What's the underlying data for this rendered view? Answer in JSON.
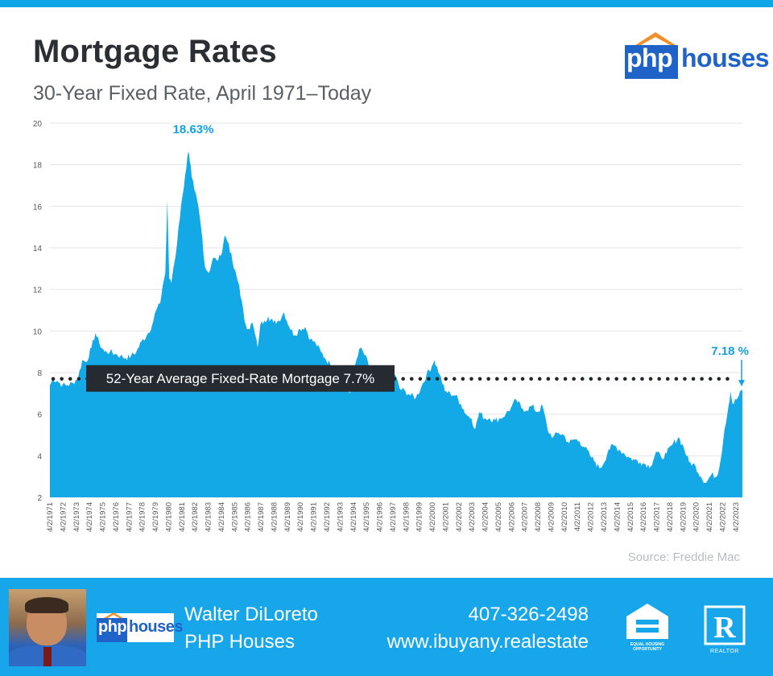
{
  "header": {
    "title": "Mortgage Rates",
    "subtitle": "30-Year Fixed Rate, April 1971–Today",
    "brand": {
      "php": "php",
      "houses": "houses"
    }
  },
  "chart_data": {
    "type": "area",
    "title": "Mortgage Rates",
    "subtitle": "30-Year Fixed Rate, April 1971–Today",
    "xlabel": "",
    "ylabel": "",
    "ylim": [
      2,
      20
    ],
    "y_ticks": [
      2,
      4,
      6,
      8,
      10,
      12,
      14,
      16,
      18,
      20
    ],
    "grid": true,
    "x_tick_labels": [
      "4/2/1971",
      "4/2/1972",
      "4/2/1973",
      "4/2/1974",
      "4/2/1975",
      "4/2/1976",
      "4/2/1977",
      "4/2/1978",
      "4/2/1979",
      "4/2/1980",
      "4/2/1981",
      "4/2/1982",
      "4/2/1983",
      "4/2/1984",
      "4/2/1985",
      "4/2/1986",
      "4/2/1987",
      "4/2/1988",
      "4/2/1989",
      "4/2/1990",
      "4/2/1991",
      "4/2/1992",
      "4/2/1993",
      "4/2/1994",
      "4/2/1995",
      "4/2/1996",
      "4/2/1997",
      "4/2/1998",
      "4/2/1999",
      "4/2/2000",
      "4/2/2001",
      "4/2/2002",
      "4/2/2003",
      "4/2/2004",
      "4/2/2005",
      "4/2/2006",
      "4/2/2007",
      "4/2/2008",
      "4/2/2009",
      "4/2/2010",
      "4/2/2011",
      "4/2/2012",
      "4/2/2013",
      "4/2/2014",
      "4/2/2015",
      "4/2/2016",
      "4/2/2017",
      "4/2/2018",
      "4/2/2019",
      "4/2/2020",
      "4/2/2021",
      "4/2/2022",
      "4/2/2023"
    ],
    "x_range": [
      1971.25,
      2023.75
    ],
    "series": [
      {
        "color": "#13a8e6",
        "x": [
          1971.25,
          1971.5,
          1971.8,
          1972.2,
          1972.6,
          1973.0,
          1973.4,
          1973.7,
          1974.0,
          1974.4,
          1974.7,
          1975.0,
          1975.4,
          1975.8,
          1976.2,
          1976.6,
          1977.0,
          1977.4,
          1977.8,
          1978.2,
          1978.6,
          1979.0,
          1979.3,
          1979.6,
          1979.8,
          1980.0,
          1980.15,
          1980.3,
          1980.45,
          1980.6,
          1980.8,
          1981.0,
          1981.3,
          1981.5,
          1981.75,
          1981.85,
          1982.0,
          1982.2,
          1982.5,
          1982.8,
          1983.0,
          1983.3,
          1983.6,
          1983.9,
          1984.2,
          1984.5,
          1984.8,
          1985.2,
          1985.6,
          1986.0,
          1986.3,
          1986.6,
          1987.0,
          1987.2,
          1987.5,
          1987.8,
          1988.2,
          1988.6,
          1989.0,
          1989.4,
          1989.8,
          1990.2,
          1990.6,
          1991.0,
          1991.4,
          1991.8,
          1992.1,
          1992.5,
          1992.9,
          1993.3,
          1993.7,
          1994.0,
          1994.4,
          1994.8,
          1995.0,
          1995.4,
          1995.8,
          1996.2,
          1996.6,
          1997.0,
          1997.4,
          1997.8,
          1998.2,
          1998.6,
          1999.0,
          1999.4,
          1999.8,
          2000.2,
          2000.4,
          2000.8,
          2001.2,
          2001.6,
          2002.0,
          2002.4,
          2002.8,
          2003.2,
          2003.5,
          2003.8,
          2004.2,
          2004.6,
          2005.0,
          2005.4,
          2005.8,
          2006.2,
          2006.6,
          2007.0,
          2007.4,
          2007.8,
          2008.2,
          2008.6,
          2009.0,
          2009.4,
          2009.8,
          2010.2,
          2010.6,
          2011.0,
          2011.4,
          2011.8,
          2012.2,
          2012.6,
          2012.9,
          2013.2,
          2013.6,
          2014.0,
          2014.4,
          2014.8,
          2015.2,
          2015.6,
          2016.0,
          2016.4,
          2016.8,
          2017.2,
          2017.6,
          2018.0,
          2018.4,
          2018.9,
          2019.3,
          2019.7,
          2020.2,
          2020.6,
          2021.0,
          2021.4,
          2021.8,
          2022.1,
          2022.4,
          2022.7,
          2022.85,
          2023.0,
          2023.3,
          2023.75
        ],
        "y": [
          7.4,
          7.7,
          7.6,
          7.4,
          7.4,
          7.5,
          7.8,
          8.6,
          8.5,
          9.2,
          9.9,
          9.4,
          9.0,
          9.0,
          8.9,
          8.8,
          8.7,
          8.8,
          9.0,
          9.5,
          9.8,
          10.3,
          11.0,
          11.3,
          12.2,
          12.8,
          16.3,
          12.5,
          12.3,
          13.0,
          13.7,
          15.0,
          16.5,
          17.5,
          18.63,
          18.2,
          17.4,
          16.8,
          16.0,
          14.5,
          13.1,
          12.8,
          13.5,
          13.4,
          13.6,
          14.6,
          14.2,
          13.0,
          12.2,
          10.5,
          10.1,
          10.4,
          9.2,
          10.3,
          10.5,
          10.7,
          10.4,
          10.5,
          10.9,
          10.2,
          9.8,
          10.1,
          10.2,
          9.6,
          9.4,
          9.0,
          8.7,
          8.4,
          8.2,
          7.5,
          7.3,
          7.0,
          8.4,
          9.2,
          9.0,
          8.4,
          7.5,
          7.6,
          8.2,
          7.7,
          7.9,
          7.2,
          7.1,
          6.9,
          6.8,
          7.3,
          7.9,
          8.3,
          8.6,
          7.9,
          7.1,
          7.0,
          6.9,
          6.5,
          6.0,
          5.8,
          5.3,
          6.1,
          5.8,
          5.8,
          5.7,
          5.8,
          6.0,
          6.3,
          6.7,
          6.3,
          6.2,
          6.4,
          6.1,
          6.4,
          5.2,
          4.9,
          5.1,
          5.0,
          4.6,
          4.8,
          4.7,
          4.4,
          4.0,
          3.7,
          3.4,
          3.6,
          4.3,
          4.5,
          4.3,
          4.1,
          3.9,
          3.8,
          3.7,
          3.6,
          3.5,
          4.2,
          3.9,
          4.1,
          4.5,
          4.9,
          4.4,
          3.7,
          3.5,
          3.0,
          2.7,
          3.1,
          3.0,
          3.8,
          5.3,
          6.4,
          7.1,
          6.5,
          6.7,
          7.18
        ]
      }
    ],
    "peak_annotation": {
      "x": 1981.75,
      "y": 18.63,
      "label": "18.63%"
    },
    "current_annotation": {
      "x": 2023.75,
      "y": 7.18,
      "label": "7.18 %"
    },
    "average_line": {
      "value": 7.7,
      "label": "52-Year Average Fixed-Rate Mortgage 7.7%"
    },
    "source": "Source: Freddie Mac"
  },
  "footer": {
    "name": "Walter DiLoreto",
    "company": "PHP Houses",
    "phone": "407-326-2498",
    "website": "www.ibuyany.realestate",
    "logo": {
      "php": "php",
      "houses": "houses"
    },
    "eho_caption": "EQUAL HOUSING OPPORTUNITY",
    "realtor_caption": "REALTOR"
  },
  "colors": {
    "accent": "#13a8e6",
    "brand_blue": "#1f63c8",
    "brand_orange": "#f0902a",
    "footer_bg": "#18a6ea",
    "annotation": "#14a0e0",
    "label_box": "#262b31"
  }
}
